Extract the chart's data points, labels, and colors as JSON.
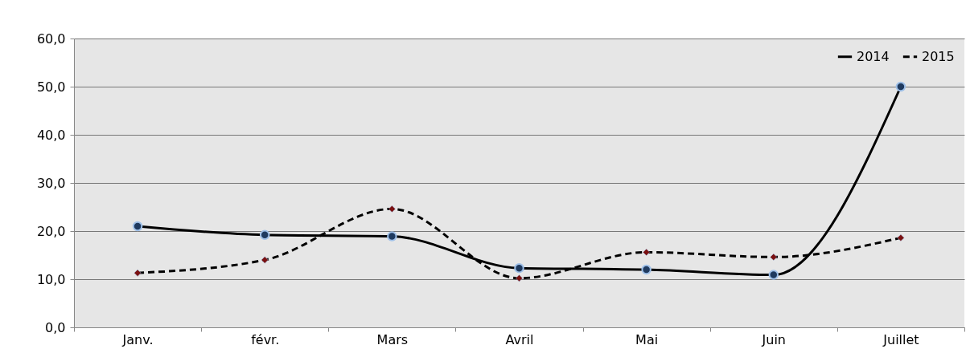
{
  "chart_data": {
    "type": "line",
    "categories": [
      "Janv.",
      "févr.",
      "Mars",
      "Avril",
      "Mai",
      "Juin",
      "Juillet"
    ],
    "series": [
      {
        "name": "2014",
        "color": "#000000",
        "marker": "circle",
        "line_style": "solid",
        "values": [
          21.0,
          19.2,
          18.9,
          12.3,
          12.0,
          10.9,
          50.0
        ]
      },
      {
        "name": "2015",
        "color": "#000000",
        "marker": "diamond",
        "line_style": "dashed",
        "values": [
          11.3,
          14.0,
          24.6,
          10.2,
          15.6,
          14.6,
          18.6
        ]
      }
    ],
    "ylim": [
      0,
      60
    ],
    "yticks": [
      {
        "value": 0,
        "label": "0,0"
      },
      {
        "value": 10,
        "label": "10,0"
      },
      {
        "value": 20,
        "label": "20,0"
      },
      {
        "value": 30,
        "label": "30,0"
      },
      {
        "value": 40,
        "label": "40,0"
      },
      {
        "value": 50,
        "label": "50,0"
      },
      {
        "value": 60,
        "label": "60,0"
      }
    ],
    "grid": "y",
    "legend": "top right"
  }
}
